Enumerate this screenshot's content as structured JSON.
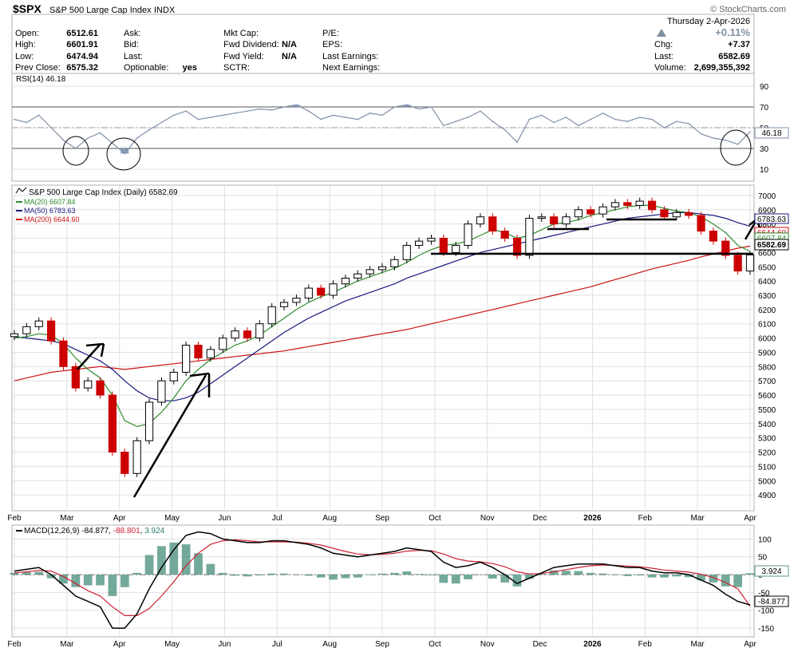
{
  "header": {
    "symbol": "$SPX",
    "name": "S&P 500 Large Cap Index",
    "exchange": "INDX",
    "watermark": "© StockCharts.com",
    "date": "Thursday  2-Apr-2026",
    "pct_change": "+0.11%",
    "fields": [
      {
        "label": "Open:",
        "value": "6512.61"
      },
      {
        "label": "High:",
        "value": "6601.91"
      },
      {
        "label": "Low:",
        "value": "6474.94"
      },
      {
        "label": "Prev Close:",
        "value": "6575.32"
      },
      {
        "label": "Ask:",
        "value": ""
      },
      {
        "label": "Bid:",
        "value": ""
      },
      {
        "label": "Last:",
        "value": ""
      },
      {
        "label": "Optionable:",
        "value": "yes"
      },
      {
        "label": "Mkt Cap:",
        "value": ""
      },
      {
        "label": "Fwd Dividend:",
        "value": "N/A"
      },
      {
        "label": "Fwd Yield:",
        "value": "N/A"
      },
      {
        "label": "SCTR:",
        "value": ""
      },
      {
        "label": "P/E:",
        "value": ""
      },
      {
        "label": "EPS:",
        "value": ""
      },
      {
        "label": "Last Earnings:",
        "value": ""
      },
      {
        "label": "Next Earnings:",
        "value": ""
      },
      {
        "label": "Chg:",
        "value": "+7.37"
      },
      {
        "label": "Last:",
        "value": "6582.69"
      },
      {
        "label": "Volume:",
        "value": "2,699,355,392"
      }
    ]
  },
  "colors": {
    "price_up": "#000000",
    "price_down": "#cc0000",
    "ma20": "#2e8b2e",
    "ma50": "#1a1a80",
    "ma200": "#cc1111",
    "rsi_line": "#8090a8",
    "rsi_fill": "#6a8bb0",
    "macd_line": "#000000",
    "macd_signal": "#cc2233",
    "macd_hist": "#5a9a8a",
    "grid": "#e0e0e0",
    "up_arrow": "#8090a0"
  },
  "chart_data": [
    {
      "type": "line",
      "panel": "rsi",
      "legend": "RSI(14) 46.18",
      "current_value_label": "46.18",
      "ylim": [
        0,
        100
      ],
      "y_ticks": [
        10,
        30,
        50,
        70,
        90
      ],
      "reference_lines": [
        70,
        30
      ],
      "x": [
        "2025-02-03",
        "2025-02-10",
        "2025-02-17",
        "2025-02-24",
        "2025-03-03",
        "2025-03-10",
        "2025-03-17",
        "2025-03-24",
        "2025-03-31",
        "2025-04-07",
        "2025-04-14",
        "2025-04-21",
        "2025-04-28",
        "2025-05-05",
        "2025-05-12",
        "2025-05-19",
        "2025-05-26",
        "2025-06-02",
        "2025-06-09",
        "2025-06-16",
        "2025-06-23",
        "2025-06-30",
        "2025-07-07",
        "2025-07-14",
        "2025-07-21",
        "2025-07-28",
        "2025-08-04",
        "2025-08-11",
        "2025-08-18",
        "2025-08-25",
        "2025-09-01",
        "2025-09-08",
        "2025-09-15",
        "2025-09-22",
        "2025-09-29",
        "2025-10-06",
        "2025-10-13",
        "2025-10-20",
        "2025-10-27",
        "2025-11-03",
        "2025-11-10",
        "2025-11-17",
        "2025-11-24",
        "2025-12-01",
        "2025-12-08",
        "2025-12-15",
        "2025-12-22",
        "2025-12-29",
        "2026-01-05",
        "2026-01-12",
        "2026-01-19",
        "2026-01-26",
        "2026-02-02",
        "2026-02-09",
        "2026-02-16",
        "2026-02-23",
        "2026-03-02",
        "2026-03-09",
        "2026-03-16",
        "2026-03-23",
        "2026-03-30"
      ],
      "values": [
        58,
        55,
        62,
        50,
        38,
        30,
        40,
        45,
        35,
        25,
        40,
        48,
        55,
        62,
        66,
        58,
        60,
        62,
        64,
        66,
        68,
        67,
        70,
        72,
        66,
        58,
        62,
        60,
        58,
        64,
        62,
        70,
        72,
        68,
        70,
        52,
        56,
        60,
        66,
        56,
        48,
        36,
        58,
        62,
        55,
        60,
        52,
        58,
        64,
        58,
        56,
        60,
        58,
        50,
        56,
        54,
        44,
        40,
        38,
        34,
        46
      ]
    },
    {
      "type": "candlestick",
      "panel": "price",
      "title": "S&P 500 Large Cap Index (Daily) 6582.69",
      "last_label": "6582.69",
      "ylim": [
        4800,
        7050
      ],
      "y_ticks": [
        4900,
        5000,
        5100,
        5200,
        5300,
        5400,
        5500,
        5600,
        5700,
        5800,
        5900,
        6000,
        6100,
        6200,
        6300,
        6400,
        6500,
        6600,
        6700,
        6800,
        6900,
        7000
      ],
      "x_tick_labels": [
        "Feb",
        "Mar",
        "Apr",
        "May",
        "Jun",
        "Jul",
        "Aug",
        "Sep",
        "Oct",
        "Nov",
        "Dec",
        "2026",
        "Feb",
        "Mar",
        "Apr"
      ],
      "series": [
        {
          "name": "MA(20) 6607.84",
          "value_label": "6607.84"
        },
        {
          "name": "MA(50) 6783.63",
          "value_label": "6783.63"
        },
        {
          "name": "MA(200) 6644.60",
          "value_label": "6644.60"
        }
      ],
      "x": [
        "2025-02-03",
        "2025-02-10",
        "2025-02-17",
        "2025-02-24",
        "2025-03-03",
        "2025-03-10",
        "2025-03-17",
        "2025-03-24",
        "2025-03-31",
        "2025-04-07",
        "2025-04-14",
        "2025-04-21",
        "2025-04-28",
        "2025-05-05",
        "2025-05-12",
        "2025-05-19",
        "2025-05-26",
        "2025-06-02",
        "2025-06-09",
        "2025-06-16",
        "2025-06-23",
        "2025-06-30",
        "2025-07-07",
        "2025-07-14",
        "2025-07-21",
        "2025-07-28",
        "2025-08-04",
        "2025-08-11",
        "2025-08-18",
        "2025-08-25",
        "2025-09-01",
        "2025-09-08",
        "2025-09-15",
        "2025-09-22",
        "2025-09-29",
        "2025-10-06",
        "2025-10-13",
        "2025-10-20",
        "2025-10-27",
        "2025-11-03",
        "2025-11-10",
        "2025-11-17",
        "2025-11-24",
        "2025-12-01",
        "2025-12-08",
        "2025-12-15",
        "2025-12-22",
        "2025-12-29",
        "2026-01-05",
        "2026-01-12",
        "2026-01-19",
        "2026-01-26",
        "2026-02-02",
        "2026-02-09",
        "2026-02-16",
        "2026-02-23",
        "2026-03-02",
        "2026-03-09",
        "2026-03-16",
        "2026-03-23",
        "2026-03-30"
      ],
      "close": [
        6030,
        6080,
        6120,
        5980,
        5800,
        5650,
        5700,
        5600,
        5200,
        5050,
        5280,
        5550,
        5700,
        5760,
        5950,
        5860,
        5920,
        6000,
        6050,
        6000,
        6100,
        6220,
        6250,
        6280,
        6350,
        6300,
        6380,
        6420,
        6450,
        6480,
        6500,
        6550,
        6650,
        6680,
        6700,
        6600,
        6650,
        6800,
        6850,
        6750,
        6700,
        6580,
        6840,
        6850,
        6800,
        6850,
        6900,
        6870,
        6920,
        6950,
        6930,
        6960,
        6900,
        6850,
        6880,
        6860,
        6750,
        6680,
        6580,
        6470,
        6582.69
      ],
      "ma20": [
        6000,
        6010,
        6030,
        6020,
        5960,
        5860,
        5780,
        5720,
        5600,
        5420,
        5380,
        5400,
        5480,
        5580,
        5700,
        5780,
        5850,
        5900,
        5950,
        5980,
        6020,
        6080,
        6140,
        6200,
        6250,
        6290,
        6320,
        6360,
        6400,
        6430,
        6460,
        6490,
        6530,
        6580,
        6620,
        6650,
        6660,
        6680,
        6720,
        6760,
        6740,
        6700,
        6720,
        6760,
        6800,
        6810,
        6830,
        6860,
        6880,
        6900,
        6920,
        6930,
        6930,
        6910,
        6890,
        6880,
        6850,
        6800,
        6740,
        6650,
        6607.84
      ],
      "ma50": [
        6010,
        6000,
        5990,
        5980,
        5960,
        5920,
        5880,
        5840,
        5780,
        5700,
        5630,
        5580,
        5560,
        5560,
        5580,
        5620,
        5680,
        5740,
        5800,
        5860,
        5920,
        5980,
        6040,
        6090,
        6140,
        6180,
        6220,
        6260,
        6290,
        6320,
        6350,
        6380,
        6420,
        6450,
        6480,
        6510,
        6540,
        6570,
        6600,
        6620,
        6640,
        6660,
        6680,
        6700,
        6720,
        6740,
        6760,
        6780,
        6800,
        6820,
        6840,
        6850,
        6860,
        6870,
        6880,
        6880,
        6870,
        6860,
        6840,
        6810,
        6783.63
      ],
      "ma200": [
        5700,
        5720,
        5740,
        5760,
        5770,
        5780,
        5790,
        5800,
        5790,
        5780,
        5790,
        5800,
        5810,
        5820,
        5830,
        5840,
        5850,
        5860,
        5870,
        5880,
        5890,
        5900,
        5910,
        5925,
        5940,
        5955,
        5970,
        5985,
        6000,
        6015,
        6030,
        6045,
        6060,
        6080,
        6100,
        6120,
        6140,
        6160,
        6180,
        6200,
        6220,
        6240,
        6260,
        6280,
        6300,
        6320,
        6340,
        6360,
        6385,
        6410,
        6435,
        6460,
        6485,
        6505,
        6525,
        6545,
        6570,
        6590,
        6610,
        6630,
        6644.6
      ]
    },
    {
      "type": "line",
      "panel": "macd",
      "legend": "MACD(12,26,9) -84.877, -88.801, 3.924",
      "series": [
        {
          "name": "MACD(12,26,9) -84.877",
          "value_label": "-84.877"
        },
        {
          "name": "-88.801"
        },
        {
          "name": "3.924",
          "value_label": "3.924"
        }
      ],
      "ylim": [
        -170,
        130
      ],
      "y_ticks": [
        -150,
        -100,
        -50,
        0,
        50,
        100
      ],
      "x_tick_labels": [
        "Feb",
        "Mar",
        "Apr",
        "May",
        "Jun",
        "Jul",
        "Aug",
        "Sep",
        "Oct",
        "Nov",
        "Dec",
        "2026",
        "Feb",
        "Mar",
        "Apr"
      ],
      "x": [
        "2025-02-03",
        "2025-02-10",
        "2025-02-17",
        "2025-02-24",
        "2025-03-03",
        "2025-03-10",
        "2025-03-17",
        "2025-03-24",
        "2025-03-31",
        "2025-04-07",
        "2025-04-14",
        "2025-04-21",
        "2025-04-28",
        "2025-05-05",
        "2025-05-12",
        "2025-05-19",
        "2025-05-26",
        "2025-06-02",
        "2025-06-09",
        "2025-06-16",
        "2025-06-23",
        "2025-06-30",
        "2025-07-07",
        "2025-07-14",
        "2025-07-21",
        "2025-07-28",
        "2025-08-04",
        "2025-08-11",
        "2025-08-18",
        "2025-08-25",
        "2025-09-01",
        "2025-09-08",
        "2025-09-15",
        "2025-09-22",
        "2025-09-29",
        "2025-10-06",
        "2025-10-13",
        "2025-10-20",
        "2025-10-27",
        "2025-11-03",
        "2025-11-10",
        "2025-11-17",
        "2025-11-24",
        "2025-12-01",
        "2025-12-08",
        "2025-12-15",
        "2025-12-22",
        "2025-12-29",
        "2026-01-05",
        "2026-01-12",
        "2026-01-19",
        "2026-01-26",
        "2026-02-02",
        "2026-02-09",
        "2026-02-16",
        "2026-02-23",
        "2026-03-02",
        "2026-03-09",
        "2026-03-16",
        "2026-03-23",
        "2026-03-30"
      ],
      "macd": [
        10,
        15,
        20,
        0,
        -30,
        -60,
        -75,
        -90,
        -150,
        -150,
        -110,
        -40,
        20,
        70,
        110,
        120,
        115,
        100,
        95,
        90,
        90,
        95,
        95,
        90,
        85,
        75,
        60,
        55,
        50,
        55,
        60,
        65,
        75,
        70,
        65,
        35,
        20,
        25,
        35,
        20,
        0,
        -25,
        -10,
        5,
        20,
        25,
        30,
        30,
        30,
        25,
        20,
        20,
        10,
        5,
        5,
        0,
        -15,
        -30,
        -55,
        -75,
        -84.877
      ],
      "signal": [
        5,
        8,
        12,
        10,
        -5,
        -25,
        -45,
        -60,
        -90,
        -115,
        -115,
        -95,
        -60,
        -20,
        25,
        60,
        85,
        95,
        98,
        95,
        92,
        92,
        92,
        91,
        88,
        83,
        74,
        65,
        58,
        56,
        57,
        60,
        66,
        68,
        67,
        58,
        45,
        38,
        36,
        31,
        22,
        8,
        2,
        3,
        8,
        14,
        20,
        25,
        27,
        26,
        24,
        22,
        18,
        13,
        10,
        7,
        1,
        -8,
        -22,
        -40,
        -88.801
      ],
      "histogram": [
        5,
        7,
        8,
        -10,
        -25,
        -35,
        -30,
        -30,
        -60,
        -35,
        5,
        55,
        80,
        90,
        85,
        60,
        30,
        5,
        -3,
        -5,
        -2,
        3,
        3,
        -1,
        -3,
        -8,
        -14,
        -10,
        -8,
        -1,
        3,
        5,
        9,
        2,
        -2,
        -23,
        -25,
        -13,
        -1,
        -11,
        -22,
        -33,
        -12,
        2,
        12,
        11,
        10,
        5,
        3,
        -1,
        -4,
        -2,
        -8,
        -8,
        -5,
        -7,
        -16,
        -22,
        -33,
        -35,
        3.924
      ]
    }
  ]
}
